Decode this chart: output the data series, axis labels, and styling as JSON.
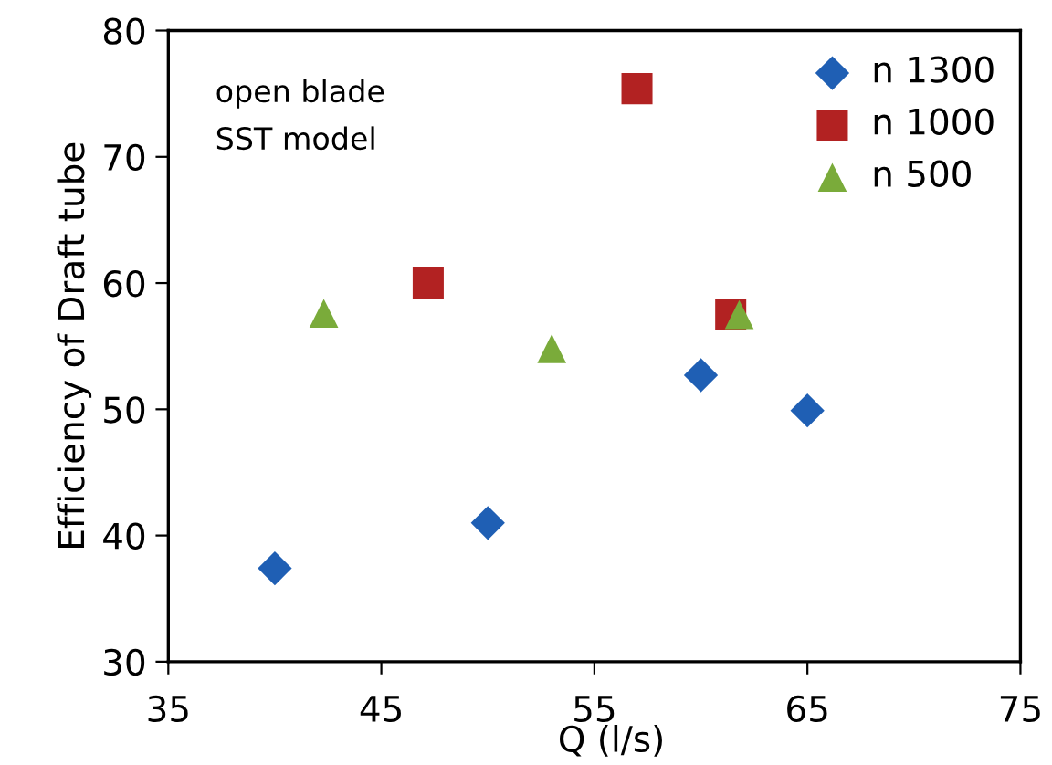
{
  "chart_data": {
    "type": "scatter",
    "xlabel": "Q (l/s)",
    "ylabel": "Efficiency of Draft tube",
    "annotations": [
      "open blade",
      "SST model"
    ],
    "xlim": [
      35,
      75
    ],
    "xticks": [
      35,
      45,
      55,
      65,
      75
    ],
    "ylim": [
      30,
      80
    ],
    "yticks": [
      30,
      40,
      50,
      60,
      70,
      80
    ],
    "grid": false,
    "legend": "top right",
    "series": [
      {
        "name": "n 1300",
        "color": "#1f5fb4",
        "marker": "diamond",
        "x": [
          40,
          50,
          60,
          65
        ],
        "values": [
          37.4,
          41.0,
          52.7,
          49.9
        ]
      },
      {
        "name": "n 1000",
        "color": "#b22222",
        "marker": "square",
        "x": [
          47.2,
          57.0,
          61.4
        ],
        "values": [
          60.0,
          75.4,
          57.5
        ]
      },
      {
        "name": "n 500",
        "color": "#7aab3a",
        "marker": "triangle",
        "x": [
          42.3,
          53.0,
          61.8
        ],
        "values": [
          57.6,
          54.8,
          57.5
        ]
      }
    ]
  }
}
